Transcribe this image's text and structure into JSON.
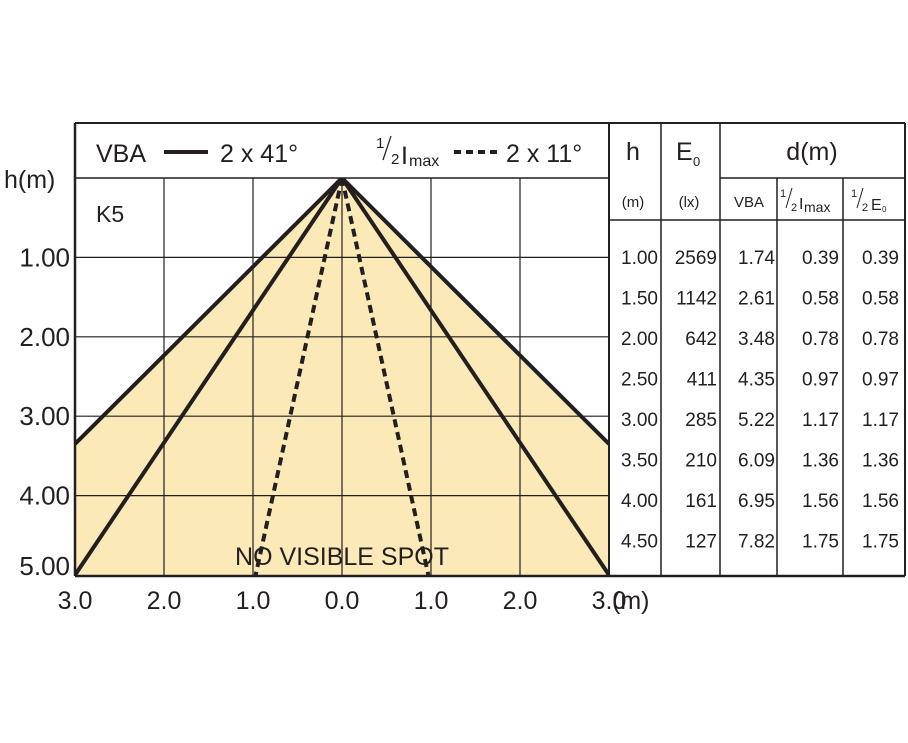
{
  "chart_data": {
    "type": "beam-diagram",
    "legend": {
      "vba_label": "VBA",
      "vba_value": "2 x 41°",
      "half_imax_prefix": "1",
      "half_imax_den": "2",
      "half_imax_I": "I",
      "half_imax_sub": "max",
      "half_imax_value": "2 x 11°"
    },
    "model": "K5",
    "ylabel": "h(m)",
    "xunit": "(m)",
    "annotation": "NO VISIBLE SPOT",
    "x_ticks": [
      "3.0",
      "2.0",
      "1.0",
      "0.0",
      "1.0",
      "2.0",
      "3.0"
    ],
    "y_ticks": [
      {
        "h": 1,
        "label": "1.00"
      },
      {
        "h": 2,
        "label": "2.00"
      },
      {
        "h": 3,
        "label": "3.00"
      },
      {
        "h": 4,
        "label": "4.00"
      },
      {
        "h": 5,
        "label": "5.00"
      }
    ],
    "xlim": [
      -3,
      3
    ],
    "ylim": [
      0,
      5
    ],
    "beam_angles_deg": {
      "vba": 41,
      "half_imax": 11
    },
    "fill_color": "#fbe9b7",
    "line_color": "#231f20",
    "table": {
      "headers": {
        "h": "h",
        "h_unit": "(m)",
        "e0": "E",
        "e0_sub": "0",
        "e0_unit": "(lx)",
        "d": "d(m)",
        "vba": "VBA",
        "half_imax_prefix": "1",
        "half_imax_den": "2",
        "half_imax_I": "I",
        "half_imax_sub": "max",
        "half_e0_prefix": "1",
        "half_e0_den": "2",
        "half_e0_E": "E",
        "half_e0_sub": "0"
      },
      "rows": [
        {
          "h": "1.00",
          "e0": "2569",
          "vba": "1.74",
          "half_imax": "0.39",
          "half_e0": "0.39"
        },
        {
          "h": "1.50",
          "e0": "1142",
          "vba": "2.61",
          "half_imax": "0.58",
          "half_e0": "0.58"
        },
        {
          "h": "2.00",
          "e0": "642",
          "vba": "3.48",
          "half_imax": "0.78",
          "half_e0": "0.78"
        },
        {
          "h": "2.50",
          "e0": "411",
          "vba": "4.35",
          "half_imax": "0.97",
          "half_e0": "0.97"
        },
        {
          "h": "3.00",
          "e0": "285",
          "vba": "5.22",
          "half_imax": "1.17",
          "half_e0": "1.17"
        },
        {
          "h": "3.50",
          "e0": "210",
          "vba": "6.09",
          "half_imax": "1.36",
          "half_e0": "1.36"
        },
        {
          "h": "4.00",
          "e0": "161",
          "vba": "6.95",
          "half_imax": "1.56",
          "half_e0": "1.56"
        },
        {
          "h": "4.50",
          "e0": "127",
          "vba": "7.82",
          "half_imax": "1.75",
          "half_e0": "1.75"
        }
      ]
    }
  }
}
